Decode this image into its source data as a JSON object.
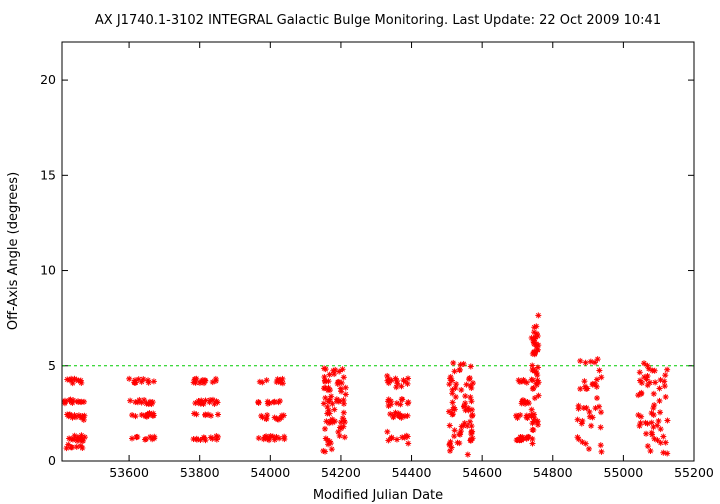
{
  "chart_data": {
    "type": "scatter",
    "title": "AX J1740.1-3102   INTEGRAL Galactic Bulge Monitoring.  Last Update: 22 Oct 2009 10:41",
    "xlabel": "Modified Julian Date",
    "ylabel": "Off-Axis Angle (degrees)",
    "xlim": [
      53410,
      55200
    ],
    "ylim": [
      0,
      22
    ],
    "xticks": [
      53600,
      53800,
      54000,
      54200,
      54400,
      54600,
      54800,
      55000,
      55200
    ],
    "yticks": [
      0,
      5,
      10,
      15,
      20
    ],
    "threshold": {
      "y": 5,
      "color": "#00cc00",
      "style": "dashed"
    },
    "marker": "asterisk",
    "marker_color": "#ff0000",
    "grid": false,
    "legend": "none",
    "series": [
      {
        "clusters": [
          {
            "x0": 53418,
            "x1": 53475,
            "levels": [
              4.2,
              3.1,
              2.3,
              1.2,
              0.8
            ],
            "jitter": 0.15,
            "n": 60
          },
          {
            "x0": 53600,
            "x1": 53672,
            "levels": [
              4.2,
              3.1,
              2.4,
              1.2
            ],
            "jitter": 0.12,
            "n": 48
          },
          {
            "x0": 53782,
            "x1": 53853,
            "levels": [
              4.2,
              3.1,
              2.4,
              1.2
            ],
            "jitter": 0.12,
            "n": 48
          },
          {
            "x0": 53965,
            "x1": 54040,
            "levels": [
              4.2,
              3.1,
              2.3,
              1.2
            ],
            "jitter": 0.12,
            "n": 48
          },
          {
            "x0": 54150,
            "x1": 54215,
            "levels": [
              4.5,
              3.5,
              2.6,
              1.5
            ],
            "jitter": 0.7,
            "n": 70,
            "spread": [
              0.2,
              5.2
            ]
          },
          {
            "x0": 54330,
            "x1": 54395,
            "levels": [
              4.2,
              3.1,
              2.4,
              1.2
            ],
            "jitter": 0.15,
            "n": 50,
            "spread": [
              0.8,
              4.9
            ]
          },
          {
            "x0": 54505,
            "x1": 54575,
            "levels": [
              4.5,
              3.3,
              2.2,
              1.3
            ],
            "jitter": 0.8,
            "n": 70,
            "spread": [
              0.1,
              5.5
            ]
          },
          {
            "x0": 54695,
            "x1": 54740,
            "levels": [
              4.2,
              3.1,
              2.3,
              1.2
            ],
            "jitter": 0.12,
            "n": 40
          },
          {
            "x0": 54740,
            "x1": 54760,
            "levels": [
              6.5,
              5.5,
              4.5,
              3.0,
              1.5
            ],
            "jitter": 1.0,
            "n": 50,
            "spread": [
              0.6,
              8.0
            ]
          },
          {
            "x0": 54870,
            "x1": 54940,
            "levels": [
              4.0,
              3.0,
              2.0,
              1.2
            ],
            "jitter": 0.9,
            "n": 40,
            "spread": [
              0.2,
              5.5
            ]
          },
          {
            "x0": 55040,
            "x1": 55125,
            "levels": [
              4.5,
              3.5,
              2.5,
              1.5
            ],
            "jitter": 0.9,
            "n": 55,
            "spread": [
              0.0,
              4.9
            ]
          }
        ]
      }
    ]
  }
}
